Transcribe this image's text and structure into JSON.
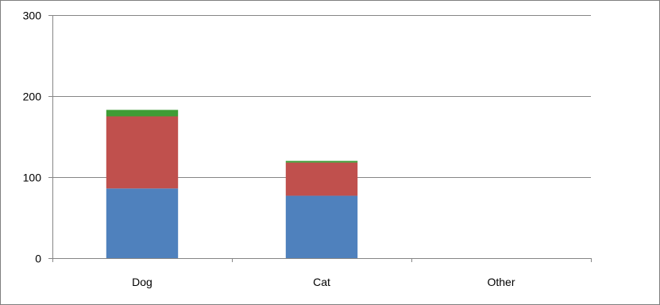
{
  "chart_data": {
    "type": "bar",
    "stacked": true,
    "categories": [
      "Dog",
      "Cat",
      "Other"
    ],
    "series": [
      {
        "values": [
          86,
          77,
          0
        ],
        "color": "#4f81bd"
      },
      {
        "values": [
          89,
          41,
          0
        ],
        "color": "#c0504d"
      },
      {
        "values": [
          8,
          2,
          0
        ],
        "color": "#3f9c35"
      }
    ],
    "y_ticks": [
      0,
      100,
      200,
      300
    ],
    "ylim": [
      0,
      300
    ],
    "grid": true,
    "legend": "none",
    "gridline_color": "#868686",
    "axis_color": "#868686"
  }
}
